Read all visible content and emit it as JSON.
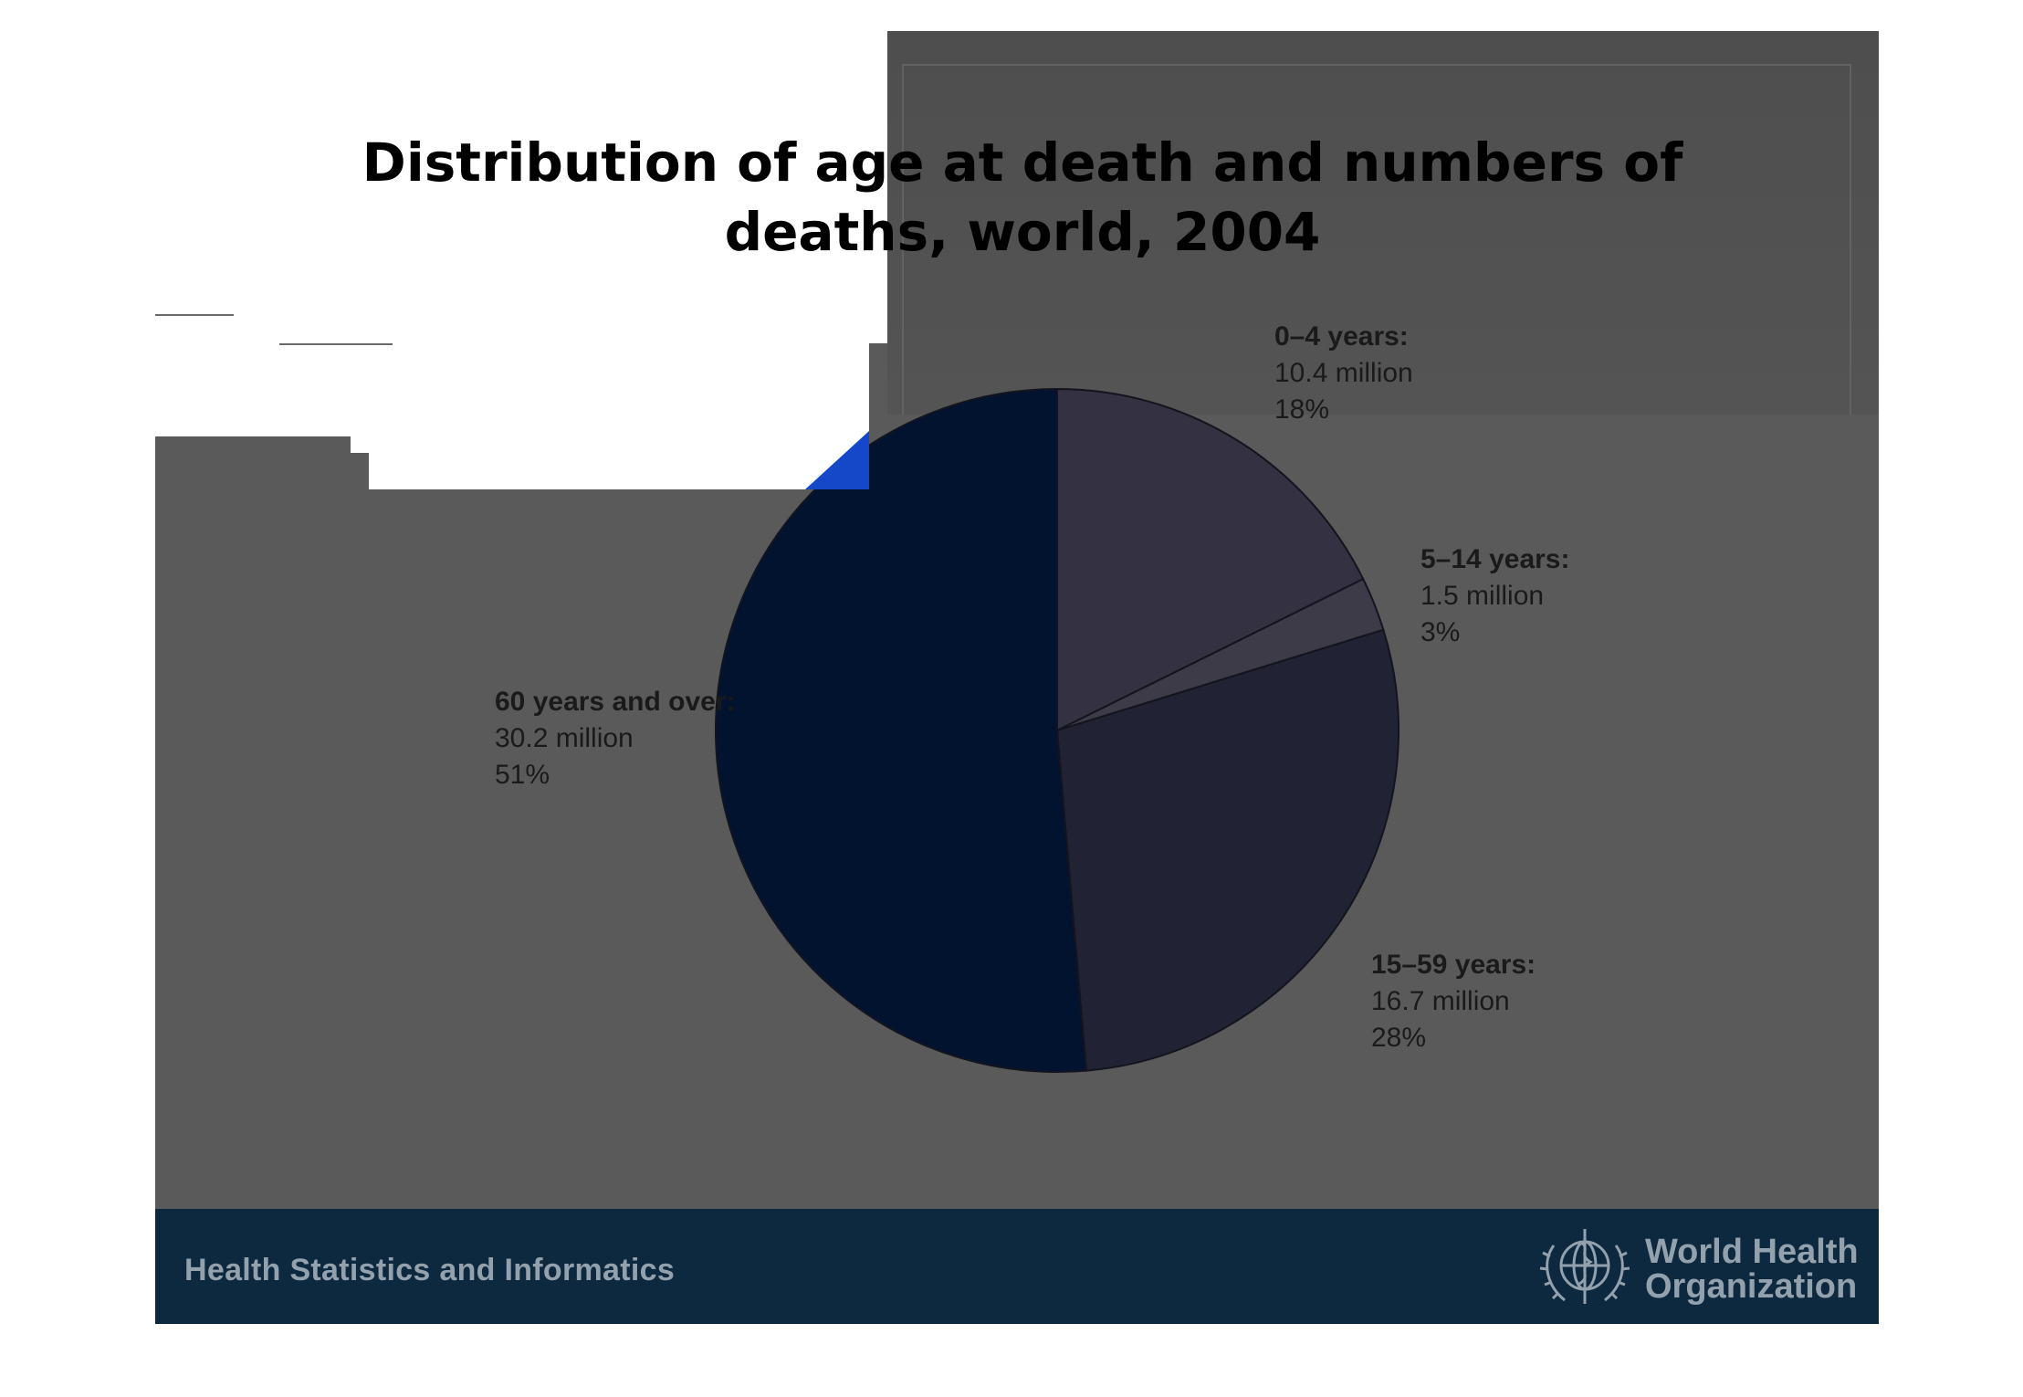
{
  "chart_data": {
    "type": "pie",
    "title": "Distribution of age at death and numbers of deaths, world, 2004",
    "slices": [
      {
        "name": "0–4 years:",
        "value_text": "10.4 million",
        "percent_text": "18%",
        "value": 10.4,
        "color": "#333142"
      },
      {
        "name": "5–14 years:",
        "value_text": "1.5 million",
        "percent_text": "3%",
        "value": 1.5,
        "color": "#3c3b47"
      },
      {
        "name": "15–59 years:",
        "value_text": "16.7 million",
        "percent_text": "28%",
        "value": 16.7,
        "color": "#222235"
      },
      {
        "name": "60 years and over:",
        "value_text": "30.2 million",
        "percent_text": "51%",
        "value": 30.2,
        "color": "#021330"
      }
    ],
    "start_angle_deg": 0,
    "direction": "clockwise",
    "highlight_color": "#1448c8"
  },
  "footer": {
    "department": "Health Statistics and Informatics",
    "org_line1": "World Health",
    "org_line2": "Organization"
  },
  "icons": {
    "logo": "who-emblem-icon"
  },
  "colors": {
    "footer_bg": "#0d2940",
    "slide_bg": "#5a5a5a",
    "footer_text": "#93a1ad"
  }
}
